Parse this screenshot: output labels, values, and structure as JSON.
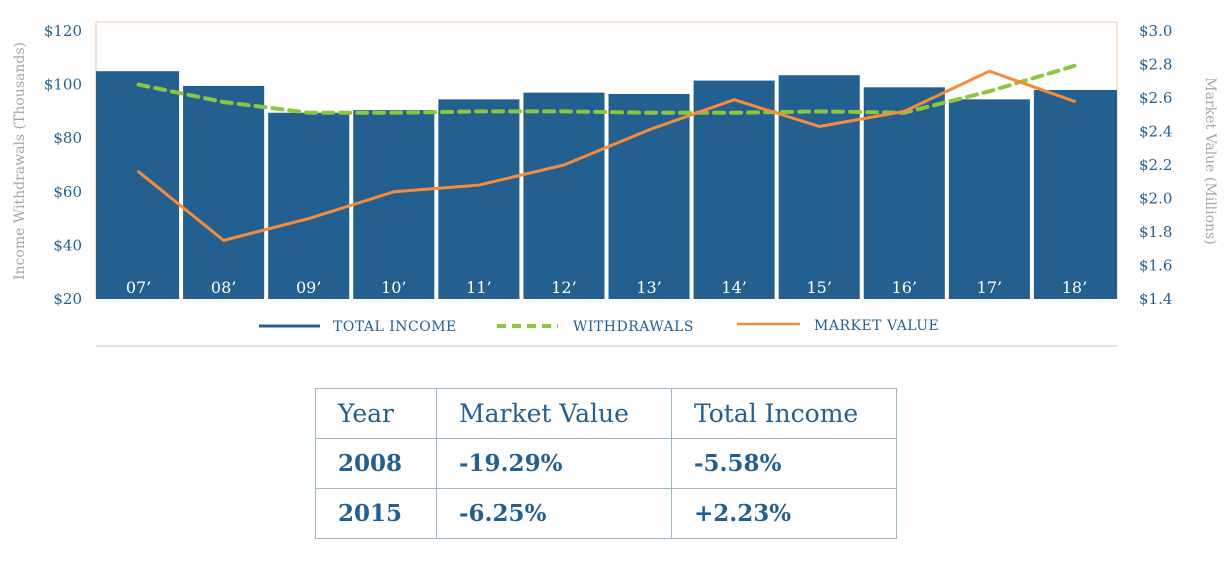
{
  "chart_data": {
    "type": "bar",
    "categories": [
      "07’",
      "08’",
      "09’",
      "10’",
      "11’",
      "12’",
      "13’",
      "14’",
      "15’",
      "16’",
      "17’",
      "18’"
    ],
    "series": [
      {
        "name": "TOTAL INCOME",
        "type": "bar",
        "axis": "left",
        "color": "#24608f",
        "values": [
          105,
          99.5,
          89.5,
          90.5,
          94.5,
          97,
          96.5,
          101.5,
          103.5,
          99,
          94.5,
          98
        ]
      },
      {
        "name": "WITHDRAWALS",
        "type": "line",
        "style": "dashed",
        "axis": "left",
        "color": "#8cc63f",
        "values": [
          100,
          93.5,
          89.5,
          89.5,
          90,
          90,
          89.5,
          89.5,
          90,
          89.5,
          97.5,
          107
        ]
      },
      {
        "name": "MARKET VALUE",
        "type": "line",
        "style": "solid",
        "axis": "right",
        "color": "#f58b3c",
        "values": [
          2.16,
          1.75,
          1.88,
          2.04,
          2.08,
          2.2,
          2.41,
          2.59,
          2.43,
          2.52,
          2.76,
          2.58
        ]
      }
    ],
    "ylabel": "Income Withdrawals (Thousands)",
    "y2label": "Market Value (Millions)",
    "ylim": [
      20,
      120
    ],
    "y2lim": [
      1.4,
      3.0
    ],
    "yticks": [
      "$20",
      "$40",
      "$60",
      "$80",
      "$100",
      "$120"
    ],
    "y2ticks": [
      "$1.4",
      "$1.6",
      "$1.8",
      "$2.0",
      "$2.2",
      "$2.4",
      "$2.6",
      "$2.8",
      "$3.0"
    ],
    "legend_position": "bottom",
    "grid": false
  },
  "legend": {
    "total_income": "TOTAL INCOME",
    "withdrawals": "WITHDRAWALS",
    "market_value": "MARKET VALUE"
  },
  "table": {
    "headers": [
      "Year",
      "Market Value",
      "Total Income"
    ],
    "rows": [
      [
        "2008",
        "-19.29%",
        "-5.58%"
      ],
      [
        "2015",
        "-6.25%",
        "+2.23%"
      ]
    ]
  },
  "colors": {
    "primary": "#24608f",
    "withdrawals": "#8cc63f",
    "market_value": "#f58b3c",
    "axis_title": "#a5a5a5"
  }
}
